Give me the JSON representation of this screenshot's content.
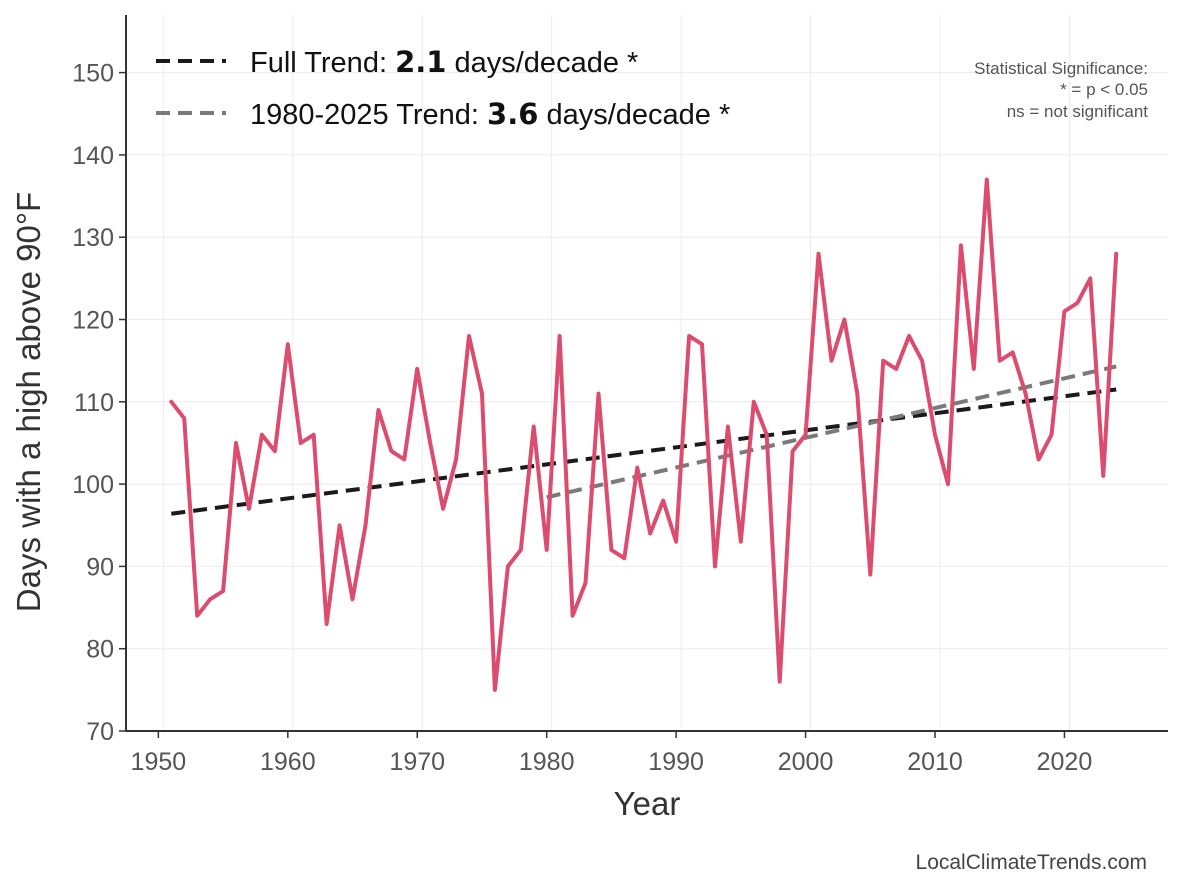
{
  "chart_data": {
    "type": "line",
    "xlabel": "Year",
    "ylabel": "Days with a high above 90°F",
    "xlim": [
      1947.5,
      2028
    ],
    "ylim": [
      70,
      157
    ],
    "xticks": [
      1950,
      1960,
      1970,
      1980,
      1990,
      2000,
      2010,
      2020
    ],
    "yticks": [
      70,
      80,
      90,
      100,
      110,
      120,
      130,
      140,
      150
    ],
    "grid": true,
    "series": [
      {
        "color": "#dc4c6e",
        "x": [
          1951,
          1952,
          1953,
          1954,
          1955,
          1956,
          1957,
          1958,
          1959,
          1960,
          1961,
          1962,
          1963,
          1964,
          1965,
          1966,
          1967,
          1968,
          1969,
          1970,
          1971,
          1972,
          1973,
          1974,
          1975,
          1976,
          1977,
          1978,
          1979,
          1980,
          1981,
          1982,
          1983,
          1984,
          1985,
          1986,
          1987,
          1988,
          1989,
          1990,
          1991,
          1992,
          1993,
          1994,
          1995,
          1996,
          1997,
          1998,
          1999,
          2000,
          2001,
          2002,
          2003,
          2004,
          2005,
          2006,
          2007,
          2008,
          2009,
          2010,
          2011,
          2012,
          2013,
          2014,
          2015,
          2016,
          2017,
          2018,
          2019,
          2020,
          2021,
          2022,
          2023,
          2024
        ],
        "values": [
          110,
          108,
          84,
          86,
          87,
          105,
          97,
          106,
          104,
          117,
          105,
          106,
          83,
          95,
          86,
          95,
          109,
          104,
          103,
          114,
          105,
          97,
          103,
          118,
          111,
          75,
          90,
          92,
          107,
          92,
          118,
          84,
          88,
          111,
          92,
          91,
          102,
          94,
          98,
          93,
          118,
          117,
          90,
          107,
          93,
          110,
          106,
          76,
          104,
          106,
          128,
          115,
          120,
          111,
          89,
          115,
          114,
          118,
          115,
          106,
          100,
          129,
          114,
          137,
          115,
          116,
          111,
          103,
          106,
          121,
          122,
          125,
          101,
          128
        ]
      }
    ],
    "trends": [
      {
        "label_prefix": "Full Trend: ",
        "rate": "2.1",
        "label_suffix": " days/decade *",
        "color": "#1a1a1a",
        "x": [
          1951,
          2024
        ],
        "y": [
          96.4,
          111.5
        ]
      },
      {
        "label_prefix": "1980-2025 Trend: ",
        "rate": "3.6",
        "label_suffix": " days/decade *",
        "color": "#7a7a7a",
        "x": [
          1980,
          2024
        ],
        "y": [
          98.4,
          114.3
        ]
      }
    ],
    "legend_position": "top-left",
    "significance_note": [
      "Statistical Significance:",
      "* = p < 0.05",
      "ns = not significant"
    ],
    "credit": "LocalClimateTrends.com"
  }
}
